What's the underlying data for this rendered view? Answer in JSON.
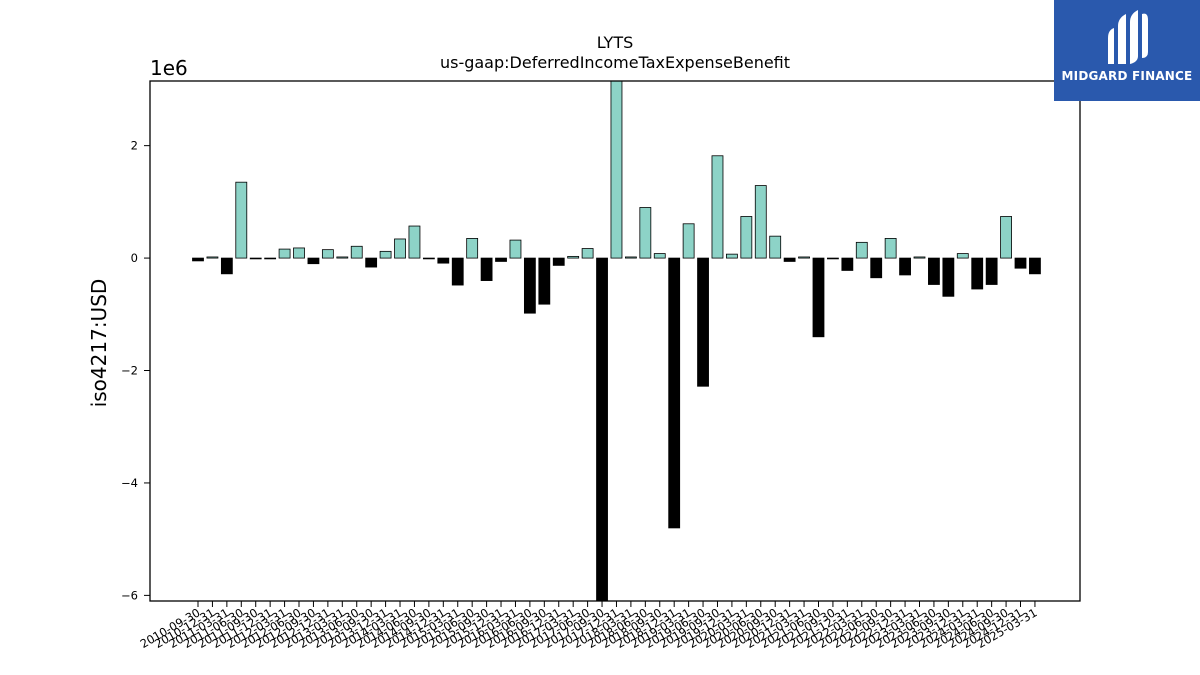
{
  "brand": {
    "name": "MIDGARD FINANCE",
    "color": "#2a59ad"
  },
  "chart_data": {
    "type": "bar",
    "title": "LYTS",
    "subtitle": "us-gaap:DeferredIncomeTaxExpenseBenefit",
    "ylabel": "iso4217:USD",
    "y_offset_label": "1e6",
    "ylim": [
      -6.1,
      3.15
    ],
    "yticks": [
      -6,
      -4,
      -2,
      0,
      2
    ],
    "yticklabels": [
      "−6",
      "−4",
      "−2",
      "0",
      "2"
    ],
    "grid": false,
    "colors": {
      "positive": "#8dd3c7",
      "negative": "#000000",
      "edge": "#000000"
    },
    "categories": [
      "2010-09-30",
      "2010-12-31",
      "2011-03-31",
      "2011-06-30",
      "2011-09-30",
      "2011-12-31",
      "2012-03-31",
      "2012-06-30",
      "2012-09-30",
      "2012-12-31",
      "2013-03-31",
      "2013-06-30",
      "2013-09-30",
      "2013-12-31",
      "2014-03-31",
      "2014-06-30",
      "2014-09-30",
      "2014-12-31",
      "2015-03-31",
      "2015-06-30",
      "2015-09-30",
      "2015-12-31",
      "2016-03-31",
      "2016-06-30",
      "2016-09-30",
      "2016-12-31",
      "2017-03-31",
      "2017-06-30",
      "2017-09-30",
      "2017-12-31",
      "2018-03-31",
      "2018-06-30",
      "2018-09-30",
      "2018-12-31",
      "2019-03-31",
      "2019-06-30",
      "2019-09-30",
      "2019-12-31",
      "2020-03-31",
      "2020-06-30",
      "2020-09-30",
      "2020-12-31",
      "2021-03-31",
      "2021-06-30",
      "2021-09-30",
      "2021-12-31",
      "2022-03-31",
      "2022-06-30",
      "2022-09-30",
      "2022-12-31",
      "2023-03-31",
      "2023-06-30",
      "2023-09-30",
      "2023-12-31",
      "2024-03-31",
      "2024-06-30",
      "2024-09-30",
      "2024-12-31",
      "2025-03-31"
    ],
    "values": [
      -0.05,
      0.02,
      -0.28,
      1.35,
      0.0,
      0.0,
      0.16,
      0.18,
      -0.1,
      0.15,
      0.02,
      0.21,
      -0.16,
      0.12,
      0.34,
      0.57,
      0.0,
      -0.09,
      -0.48,
      0.35,
      -0.4,
      -0.06,
      0.32,
      -0.98,
      -0.82,
      -0.13,
      0.03,
      0.17,
      -6.1,
      3.15,
      0.02,
      0.9,
      0.08,
      -4.8,
      0.61,
      -2.28,
      1.82,
      0.07,
      0.74,
      1.29,
      0.39,
      -0.06,
      0.02,
      -1.4,
      0.0,
      -0.22,
      0.28,
      -0.35,
      0.35,
      -0.3,
      0.02,
      -0.47,
      -0.68,
      0.08,
      -0.55,
      -0.47,
      0.74,
      -0.18,
      -0.28
    ]
  }
}
